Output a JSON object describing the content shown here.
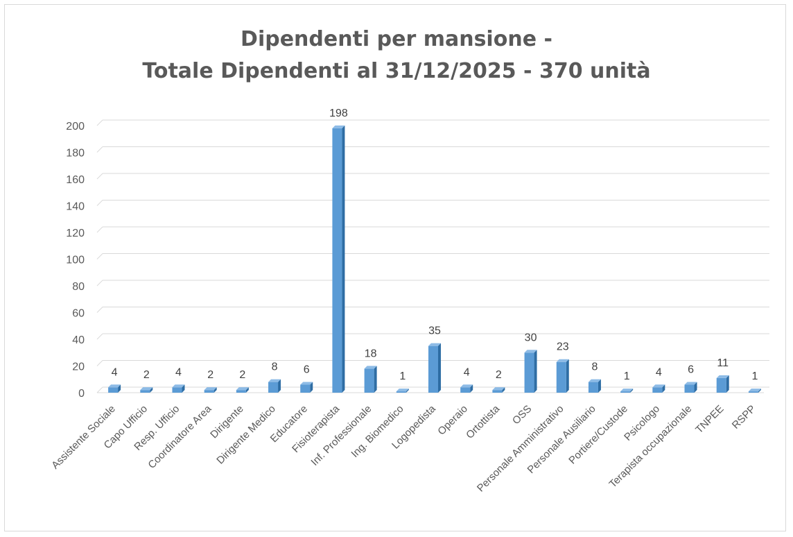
{
  "chart_data": {
    "type": "bar",
    "title_line1": "Dipendenti per mansione -",
    "title_line2": "Totale Dipendenti al 31/12/2025 - 370 unità",
    "xlabel": "",
    "ylabel": "",
    "ylim": [
      0,
      200
    ],
    "yticks": [
      0,
      20,
      40,
      60,
      80,
      100,
      120,
      140,
      160,
      180,
      200
    ],
    "grid": true,
    "legend": "none",
    "bar_color": "#5b9bd5",
    "bar_side_color": "#2e6da4",
    "bar_top_color": "#8dbbe6",
    "categories": [
      "Assistente Sociale",
      "Capo Ufficio",
      "Resp. Ufficio",
      "Coordinatore Area",
      "Dirigente",
      "Dirigente Medico",
      "Educatore",
      "Fisioterapista",
      "Inf. Professionale",
      "Ing. Biomedico",
      "Logopedista",
      "Operaio",
      "Ortottista",
      "OSS",
      "Personale Amministrativo",
      "Personale Ausiliario",
      "Portiere/Custode",
      "Psicologo",
      "Terapista occupazionale",
      "TNPEE",
      "RSPP"
    ],
    "values": [
      4,
      2,
      4,
      2,
      2,
      8,
      6,
      198,
      18,
      1,
      35,
      4,
      2,
      30,
      23,
      8,
      1,
      4,
      6,
      11,
      1
    ]
  }
}
